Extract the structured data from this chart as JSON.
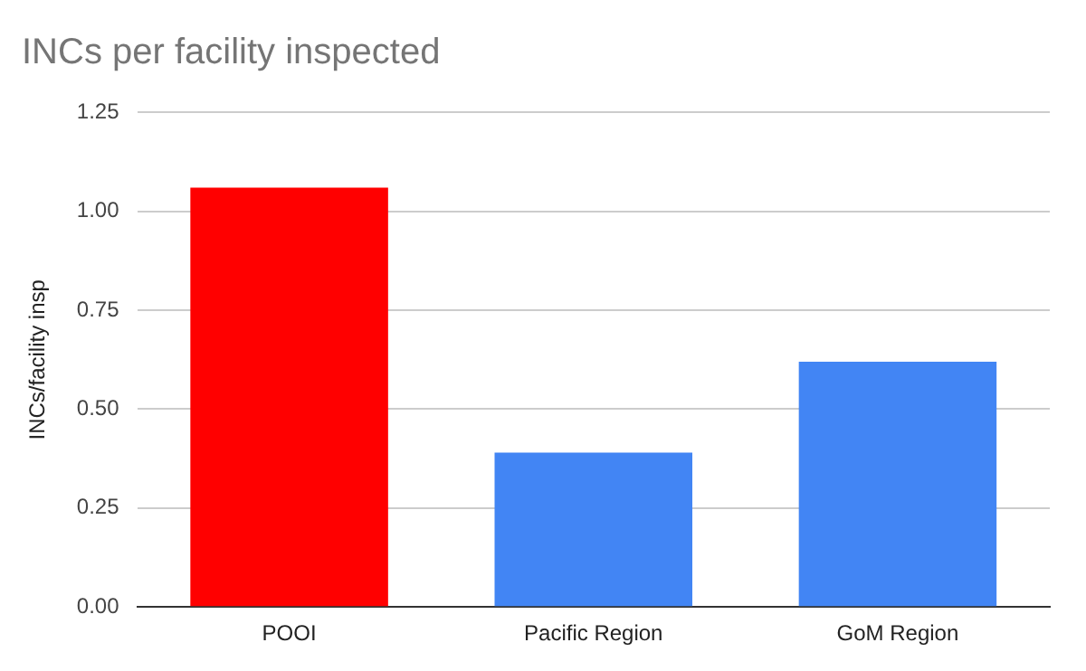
{
  "chart_data": {
    "type": "bar",
    "title": "INCs per facility inspected",
    "ylabel": "INCs/facility insp",
    "categories": [
      "POOI",
      "Pacific Region",
      "GoM Region"
    ],
    "values": [
      1.06,
      0.39,
      0.62
    ],
    "colors": [
      "#ff0000",
      "#4285f4",
      "#4285f4"
    ],
    "ylim": [
      0,
      1.25
    ],
    "yticks": [
      {
        "value": 0,
        "label": "0.00"
      },
      {
        "value": 0.25,
        "label": "0.25"
      },
      {
        "value": 0.5,
        "label": "0.50"
      },
      {
        "value": 0.75,
        "label": "0.75"
      },
      {
        "value": 1,
        "label": "1.00"
      },
      {
        "value": 1.25,
        "label": "1.25"
      }
    ],
    "grid": "y",
    "legend": false
  }
}
